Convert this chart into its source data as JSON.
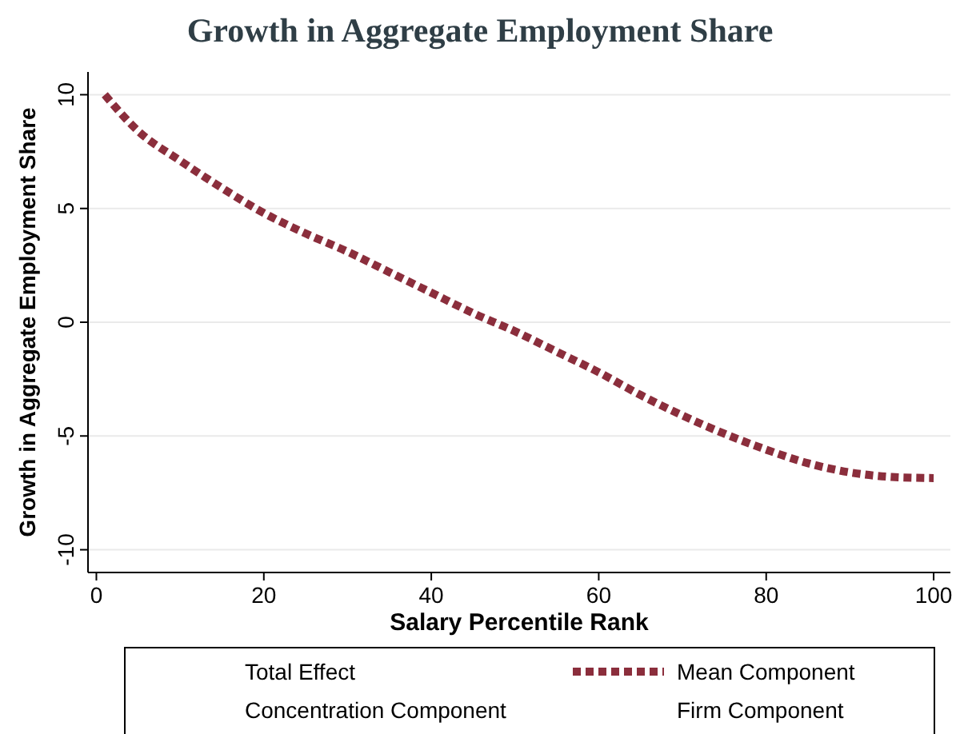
{
  "chart_data": {
    "type": "line",
    "title": "Growth in Aggregate Employment Share",
    "xlabel": "Salary Percentile Rank",
    "ylabel": "Growth in Aggregate Employment Share",
    "x": [
      1,
      5,
      10,
      15,
      20,
      25,
      30,
      35,
      40,
      45,
      50,
      55,
      60,
      65,
      70,
      75,
      80,
      85,
      90,
      95,
      100
    ],
    "series": [
      {
        "name": "Total Effect",
        "values": [
          null,
          null,
          null,
          null,
          null,
          null,
          null,
          null,
          null,
          null,
          null,
          null,
          null,
          null,
          null,
          null,
          null,
          null,
          null,
          null,
          null
        ]
      },
      {
        "name": "Mean Component",
        "color": "#8b2e3c",
        "values": [
          10,
          8.4,
          7.1,
          5.9,
          4.8,
          3.9,
          3.1,
          2.2,
          1.3,
          0.4,
          -0.4,
          -1.3,
          -2.2,
          -3.2,
          -4.1,
          -4.9,
          -5.6,
          -6.2,
          -6.6,
          -6.8,
          -6.85
        ]
      },
      {
        "name": "Concentration Component",
        "values": [
          null,
          null,
          null,
          null,
          null,
          null,
          null,
          null,
          null,
          null,
          null,
          null,
          null,
          null,
          null,
          null,
          null,
          null,
          null,
          null,
          null
        ]
      },
      {
        "name": "Firm Component",
        "values": [
          null,
          null,
          null,
          null,
          null,
          null,
          null,
          null,
          null,
          null,
          null,
          null,
          null,
          null,
          null,
          null,
          null,
          null,
          null,
          null,
          null
        ]
      }
    ],
    "xlim": [
      -1,
      102
    ],
    "ylim": [
      -11,
      11
    ],
    "xticks": [
      0,
      20,
      40,
      60,
      80,
      100
    ],
    "yticks": [
      -10,
      -5,
      0,
      5,
      10
    ],
    "grid": "y",
    "legend": "bottom",
    "line_style": "dashed",
    "marker": "none"
  }
}
